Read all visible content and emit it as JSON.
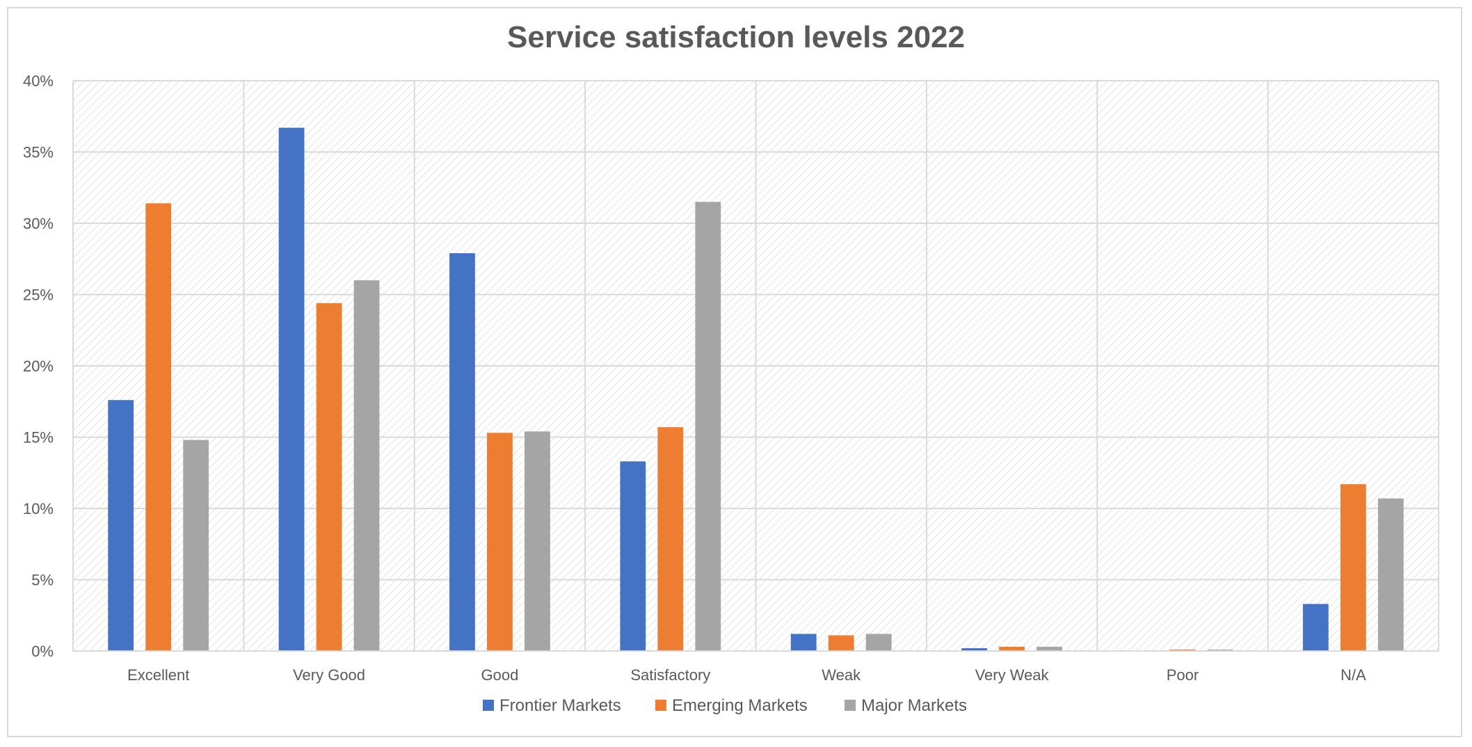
{
  "chart_data": {
    "type": "bar",
    "title": "Service satisfaction levels 2022",
    "xlabel": "",
    "ylabel": "",
    "categories": [
      "Excellent",
      "Very Good",
      "Good",
      "Satisfactory",
      "Weak",
      "Very Weak",
      "Poor",
      "N/A"
    ],
    "ylim": [
      0,
      40
    ],
    "y_ticks": [
      0,
      5,
      10,
      15,
      20,
      25,
      30,
      35,
      40
    ],
    "y_tick_labels": [
      "0%",
      "5%",
      "10%",
      "15%",
      "20%",
      "25%",
      "30%",
      "35%",
      "40%"
    ],
    "grid": true,
    "legend_position": "bottom",
    "series": [
      {
        "name": "Frontier Markets",
        "color": "#4472c4",
        "values": [
          17.6,
          36.7,
          27.9,
          13.3,
          1.2,
          0.2,
          0.0,
          3.3
        ]
      },
      {
        "name": "Emerging Markets",
        "color": "#ed7d31",
        "values": [
          31.4,
          24.4,
          15.3,
          15.7,
          1.1,
          0.3,
          0.1,
          11.7
        ]
      },
      {
        "name": "Major Markets",
        "color": "#a5a5a5",
        "values": [
          14.8,
          26.0,
          15.4,
          31.5,
          1.2,
          0.3,
          0.1,
          10.7
        ]
      }
    ]
  }
}
